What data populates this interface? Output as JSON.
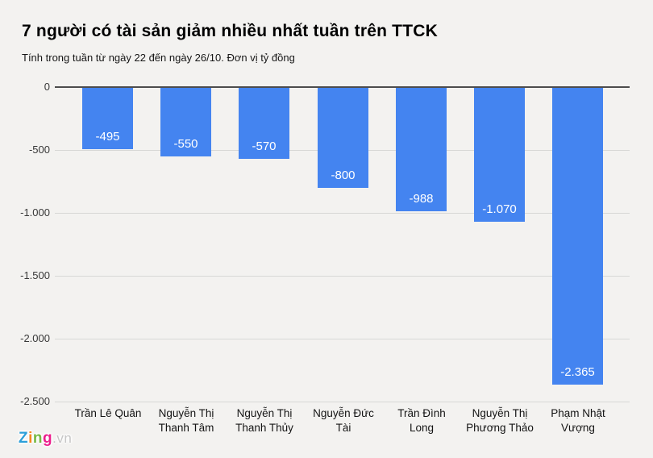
{
  "header": {
    "title": "7 người có tài sản giảm nhiều nhất tuần trên TTCK",
    "subtitle": "Tính trong tuần từ ngày 22 đến ngày 26/10. Đơn vị tỷ đồng"
  },
  "chart_data": {
    "type": "bar",
    "title": "7 người có tài sản giảm nhiều nhất tuần trên TTCK",
    "subtitle": "Tính trong tuần từ ngày 22 đến ngày 26/10. Đơn vị tỷ đồng",
    "unit": "tỷ đồng",
    "orientation": "vertical",
    "categories": [
      "Trần Lê Quân",
      "Nguyễn Thị Thanh Tâm",
      "Nguyễn Thị Thanh Thủy",
      "Nguyễn Đức Tài",
      "Trần Đình Long",
      "Nguyễn Thị Phương Thảo",
      "Phạm Nhật Vượng"
    ],
    "category_lines": [
      [
        "Trần Lê Quân"
      ],
      [
        "Nguyễn Thị",
        "Thanh Tâm"
      ],
      [
        "Nguyễn Thị",
        "Thanh Thủy"
      ],
      [
        "Nguyễn Đức",
        "Tài"
      ],
      [
        "Trần Đình",
        "Long"
      ],
      [
        "Nguyễn Thị",
        "Phương Thảo"
      ],
      [
        "Phạm Nhật",
        "Vượng"
      ]
    ],
    "values": [
      -495,
      -550,
      -570,
      -800,
      -988,
      -1070,
      -2365
    ],
    "value_labels": [
      "-495",
      "-550",
      "-570",
      "-800",
      "-988",
      "-1.070",
      "-2.365"
    ],
    "ylim": [
      -2500,
      0
    ],
    "yticks": [
      {
        "value": 0,
        "label": "0"
      },
      {
        "value": -500,
        "label": "-500"
      },
      {
        "value": -1000,
        "label": "-1.000"
      },
      {
        "value": -1500,
        "label": "-1.500"
      },
      {
        "value": -2000,
        "label": "-2.000"
      },
      {
        "value": -2500,
        "label": "-2.500"
      }
    ],
    "grid": true,
    "legend": "none",
    "bar_color": "#4484f0",
    "value_label_color": "#ffffff"
  },
  "footer": {
    "logo": {
      "letters": [
        {
          "char": "Z",
          "color": "#2b9fd9"
        },
        {
          "char": "i",
          "color": "#f6881f"
        },
        {
          "char": "n",
          "color": "#76b943"
        },
        {
          "char": "g",
          "color": "#ec1e8c"
        }
      ],
      "suffix": ".vn"
    }
  }
}
